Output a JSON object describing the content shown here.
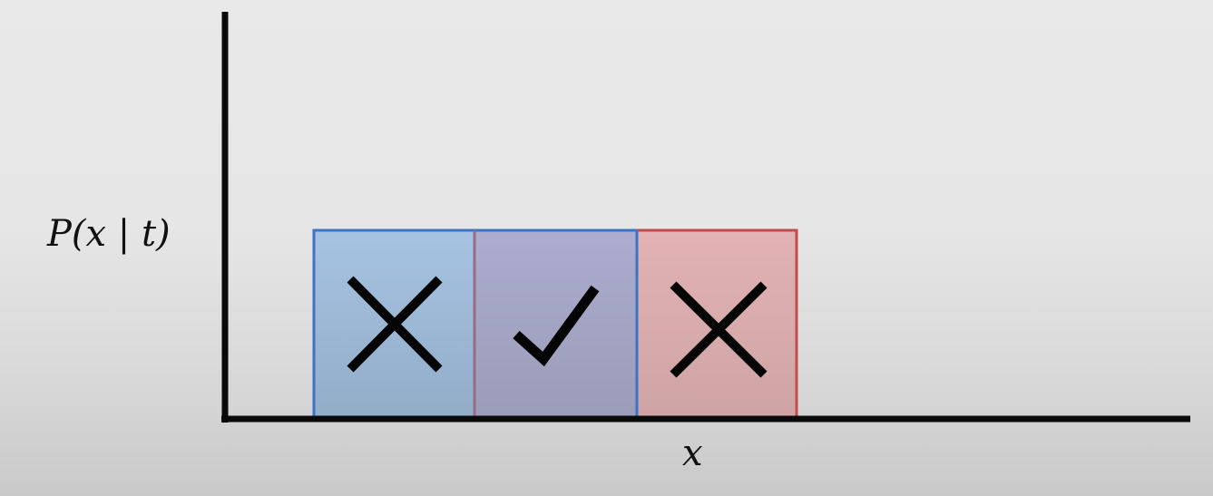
{
  "labels": {
    "y_axis": "P(x | t)",
    "x_axis": "x"
  },
  "colors": {
    "axis": "#0a0a0a",
    "left_fill": "#9fbad8",
    "left_stroke": "#3b74c6",
    "middle_fill": "#a6a6c6",
    "middle_stroke_top": "#3b74c6",
    "right_fill": "#deaeb0",
    "right_stroke": "#c44b4b",
    "mark": "#050505"
  },
  "regions": [
    {
      "name": "left",
      "mark": "cross-icon"
    },
    {
      "name": "middle",
      "mark": "checkmark-icon"
    },
    {
      "name": "right",
      "mark": "cross-icon"
    }
  ]
}
